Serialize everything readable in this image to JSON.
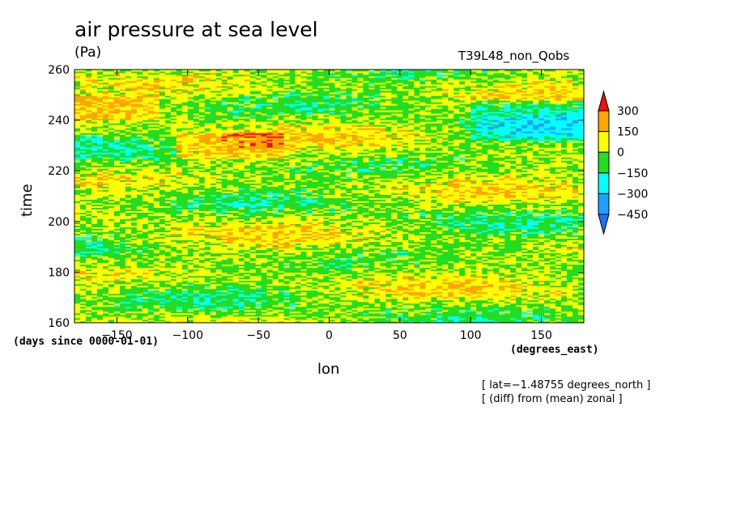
{
  "chart_data": {
    "type": "heatmap",
    "title": "air pressure at sea level",
    "units": "(Pa)",
    "run_name": "T39L48_non_Qobs",
    "xlabel": "lon",
    "xunits": "(degrees_east)",
    "ylabel": "time",
    "yunits": "(days since 0000-01-01)",
    "xlim": [
      -180,
      180
    ],
    "ylim": [
      160,
      260
    ],
    "x_ticks": [
      -150,
      -100,
      -50,
      0,
      50,
      100,
      150
    ],
    "y_ticks": [
      160,
      180,
      200,
      220,
      240,
      260
    ],
    "x_tick_labels": [
      "−150",
      "−100",
      "−50",
      "0",
      "50",
      "100",
      "150"
    ],
    "y_tick_labels": [
      "160",
      "180",
      "200",
      "220",
      "240",
      "260"
    ],
    "colorbar": {
      "levels": [
        -450,
        -300,
        -150,
        0,
        150,
        300
      ],
      "labels": [
        "−450",
        "−300",
        "−150",
        "0",
        "150",
        "300"
      ],
      "colors": [
        "#1e6eff",
        "#1ea0ff",
        "#00ffff",
        "#22dd22",
        "#ffff00",
        "#ffa500",
        "#ee1111"
      ]
    },
    "annotations": [
      "[ lat=−1.48755 degrees_north ]",
      "[ (diff) from (mean) zonal ]"
    ]
  }
}
